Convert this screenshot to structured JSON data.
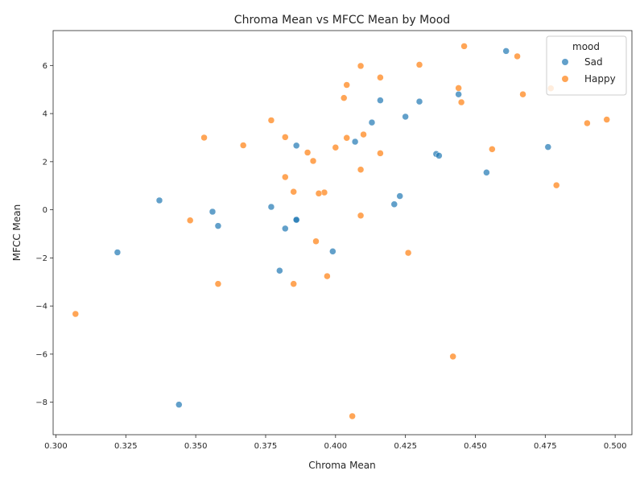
{
  "chart_data": {
    "type": "scatter",
    "title": "Chroma Mean vs MFCC Mean by Mood",
    "xlabel": "Chroma Mean",
    "ylabel": "MFCC Mean",
    "xlim": [
      0.299,
      0.506
    ],
    "ylim": [
      -9.35,
      7.45
    ],
    "xticks": [
      "0.300",
      "0.325",
      "0.350",
      "0.375",
      "0.400",
      "0.425",
      "0.450",
      "0.475",
      "0.500"
    ],
    "yticks": [
      "−8",
      "−6",
      "−4",
      "−2",
      "0",
      "2",
      "4",
      "6"
    ],
    "grid": false,
    "legend": {
      "title": "mood",
      "placement": "top-right"
    },
    "series": [
      {
        "name": "Sad",
        "color": "#1f77b4",
        "points": [
          [
            0.461,
            6.6
          ],
          [
            0.444,
            4.8
          ],
          [
            0.416,
            4.55
          ],
          [
            0.43,
            4.5
          ],
          [
            0.425,
            3.87
          ],
          [
            0.413,
            3.63
          ],
          [
            0.386,
            2.67
          ],
          [
            0.407,
            2.83
          ],
          [
            0.476,
            2.61
          ],
          [
            0.436,
            2.32
          ],
          [
            0.437,
            2.25
          ],
          [
            0.454,
            1.55
          ],
          [
            0.423,
            0.57
          ],
          [
            0.421,
            0.23
          ],
          [
            0.337,
            0.39
          ],
          [
            0.377,
            0.12
          ],
          [
            0.356,
            -0.08
          ],
          [
            0.386,
            -0.4
          ],
          [
            0.386,
            -0.42
          ],
          [
            0.358,
            -0.67
          ],
          [
            0.382,
            -0.78
          ],
          [
            0.322,
            -1.77
          ],
          [
            0.399,
            -1.73
          ],
          [
            0.38,
            -2.53
          ],
          [
            0.344,
            -8.1
          ]
        ]
      },
      {
        "name": "Happy",
        "color": "#ff7f0e",
        "points": [
          [
            0.446,
            6.8
          ],
          [
            0.465,
            6.38
          ],
          [
            0.409,
            5.98
          ],
          [
            0.43,
            6.03
          ],
          [
            0.416,
            5.5
          ],
          [
            0.404,
            5.19
          ],
          [
            0.444,
            5.06
          ],
          [
            0.477,
            5.05
          ],
          [
            0.467,
            4.8
          ],
          [
            0.403,
            4.65
          ],
          [
            0.445,
            4.47
          ],
          [
            0.377,
            3.72
          ],
          [
            0.497,
            3.75
          ],
          [
            0.49,
            3.6
          ],
          [
            0.41,
            3.13
          ],
          [
            0.353,
            3.0
          ],
          [
            0.382,
            3.02
          ],
          [
            0.404,
            2.99
          ],
          [
            0.367,
            2.68
          ],
          [
            0.4,
            2.59
          ],
          [
            0.456,
            2.52
          ],
          [
            0.39,
            2.38
          ],
          [
            0.416,
            2.35
          ],
          [
            0.392,
            2.03
          ],
          [
            0.409,
            1.67
          ],
          [
            0.382,
            1.36
          ],
          [
            0.479,
            1.02
          ],
          [
            0.385,
            0.75
          ],
          [
            0.396,
            0.72
          ],
          [
            0.394,
            0.68
          ],
          [
            0.409,
            -0.24
          ],
          [
            0.348,
            -0.44
          ],
          [
            0.393,
            -1.31
          ],
          [
            0.426,
            -1.79
          ],
          [
            0.397,
            -2.76
          ],
          [
            0.358,
            -3.08
          ],
          [
            0.385,
            -3.08
          ],
          [
            0.307,
            -4.33
          ],
          [
            0.442,
            -6.1
          ],
          [
            0.406,
            -8.58
          ]
        ]
      }
    ]
  }
}
